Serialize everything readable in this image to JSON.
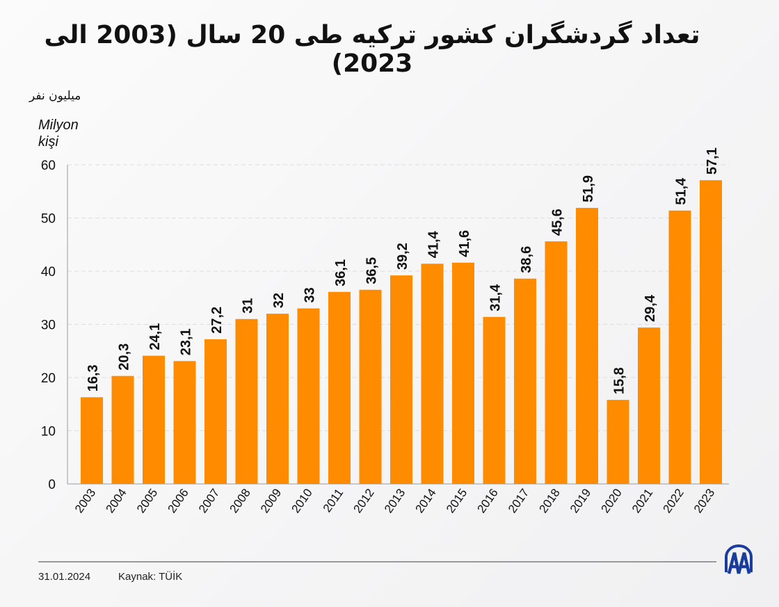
{
  "chart_data": {
    "type": "bar",
    "title": "تعداد گردشگران کشور ترکیه طی 20 سال (2003 الی 2023)",
    "ylabel_fa": "میلیون نفر",
    "ylabel_tr": "Milyon kişi",
    "categories": [
      "2003",
      "2004",
      "2005",
      "2006",
      "2007",
      "2008",
      "2009",
      "2010",
      "2011",
      "2012",
      "2013",
      "2014",
      "2015",
      "2016",
      "2017",
      "2018",
      "2019",
      "2020",
      "2021",
      "2022",
      "2023"
    ],
    "values": [
      16.3,
      20.3,
      24.1,
      23.1,
      27.2,
      31,
      32,
      33,
      36.1,
      36.5,
      39.2,
      41.4,
      41.6,
      31.4,
      38.6,
      45.6,
      51.9,
      15.8,
      29.4,
      51.4,
      57.1
    ],
    "labels": [
      "16,3",
      "20,3",
      "24,1",
      "23,1",
      "27,2",
      "31",
      "32",
      "33",
      "36,1",
      "36,5",
      "39,2",
      "41,4",
      "41,6",
      "31,4",
      "38,6",
      "45,6",
      "51,9",
      "15,8",
      "29,4",
      "51,4",
      "57,1"
    ],
    "ylim": [
      0,
      60
    ],
    "yticks": [
      0,
      10,
      20,
      30,
      40,
      50,
      60
    ],
    "grid": true,
    "bar_color": "#ff8c00"
  },
  "footer": {
    "date": "31.01.2024",
    "source": "Kaynak: TÜİK",
    "logo_text": "AA",
    "logo_color": "#1a3c9c"
  }
}
